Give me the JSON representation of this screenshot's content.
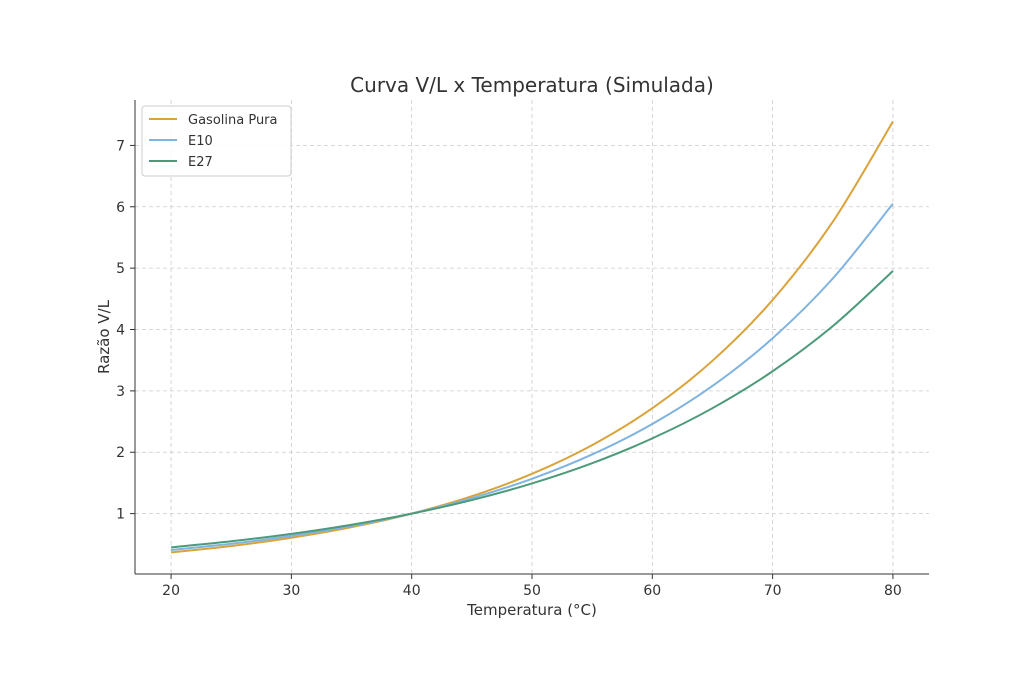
{
  "chart_data": {
    "type": "line",
    "title": "Curva V/L x Temperatura (Simulada)",
    "xlabel": "Temperatura (°C)",
    "ylabel": "Razão V/L",
    "xlim": [
      17,
      83
    ],
    "ylim": [
      0.016,
      7.74
    ],
    "xticks": [
      20,
      30,
      40,
      50,
      60,
      70,
      80
    ],
    "yticks": [
      1,
      2,
      3,
      4,
      5,
      6,
      7
    ],
    "grid": true,
    "legend_position": "top-left",
    "x": [
      20,
      25,
      30,
      35,
      40,
      45,
      50,
      55,
      60,
      65,
      70,
      75,
      80
    ],
    "series": [
      {
        "name": "Gasolina Pura",
        "color": "#DAA33A",
        "values": [
          0.368,
          0.472,
          0.607,
          0.779,
          1.0,
          1.284,
          1.649,
          2.117,
          2.718,
          3.49,
          4.482,
          5.755,
          7.389
        ]
      },
      {
        "name": "E10",
        "color": "#7FB3E0",
        "values": [
          0.407,
          0.509,
          0.638,
          0.799,
          1.0,
          1.252,
          1.568,
          1.964,
          2.46,
          3.08,
          3.857,
          4.831,
          6.05
        ]
      },
      {
        "name": "E27",
        "color": "#4C9A7A",
        "values": [
          0.449,
          0.549,
          0.67,
          0.819,
          1.0,
          1.221,
          1.492,
          1.822,
          2.226,
          2.718,
          3.32,
          4.055,
          4.953
        ]
      }
    ]
  }
}
